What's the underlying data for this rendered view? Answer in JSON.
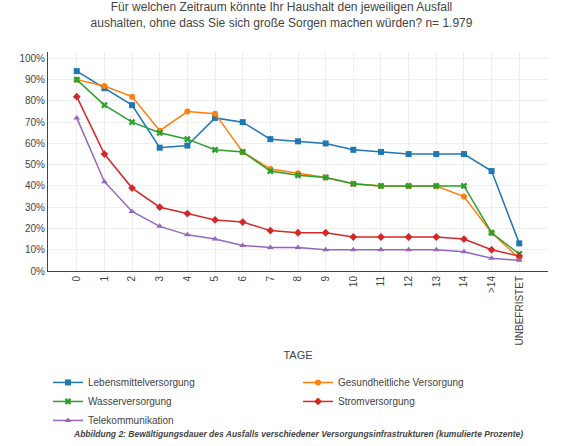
{
  "chart_data": {
    "type": "line",
    "title": "Für welchen Zeitraum könnte Ihr Haushalt den jeweiligen Ausfall\naushalten, ohne dass Sie sich große Sorgen machen würden? n= 1.979",
    "x_label": "TAGE",
    "annotations": [
      "Abbildung 2: Bewältigungsdauer des Ausfalls verschiedener Versorgungsinfrastrukturen (kumulierte Prozente)"
    ],
    "categories": [
      "0",
      "1",
      "2",
      "3",
      "4",
      "5",
      "6",
      "7",
      "8",
      "9",
      "10",
      "11",
      "12",
      "13",
      "14",
      ">14",
      "UNBEFRISTET"
    ],
    "series": [
      {
        "name": "Lebensmittelversorgung",
        "marker": "square",
        "values": [
          94,
          86,
          78,
          58,
          59,
          72,
          70,
          62,
          61,
          60,
          57,
          56,
          55,
          55,
          55,
          47,
          13
        ]
      },
      {
        "name": "Gesundheitliche Versorgung",
        "marker": "circle",
        "values": [
          90,
          87,
          82,
          66,
          75,
          74,
          56,
          48,
          46,
          44,
          41,
          40,
          40,
          40,
          35,
          18,
          6
        ]
      },
      {
        "name": "Wasserversorgung",
        "marker": "x",
        "values": [
          90,
          78,
          70,
          65,
          62,
          57,
          56,
          47,
          45,
          44,
          41,
          40,
          40,
          40,
          40,
          18,
          8
        ]
      },
      {
        "name": "Stromversorgung",
        "marker": "diamond",
        "values": [
          82,
          55,
          39,
          30,
          27,
          24,
          23,
          19,
          18,
          18,
          16,
          16,
          16,
          16,
          15,
          10,
          7
        ]
      },
      {
        "name": "Telekommunikation",
        "marker": "triangle",
        "values": [
          72,
          42,
          28,
          21,
          17,
          15,
          12,
          11,
          11,
          10,
          10,
          10,
          10,
          10,
          9,
          6,
          5
        ]
      }
    ],
    "ylim": [
      0,
      103
    ],
    "yticks": [
      {
        "value": 0,
        "label": "0%"
      },
      {
        "value": 10,
        "label": "10%"
      },
      {
        "value": 20,
        "label": "20%"
      },
      {
        "value": 30,
        "label": "30%"
      },
      {
        "value": 40,
        "label": "40%"
      },
      {
        "value": 50,
        "label": "50%"
      },
      {
        "value": 60,
        "label": "60%"
      },
      {
        "value": 70,
        "label": "70%"
      },
      {
        "value": 80,
        "label": "80%"
      },
      {
        "value": 90,
        "label": "90%"
      },
      {
        "value": 100,
        "label": "100%"
      }
    ],
    "grid": true,
    "legend": "bottom"
  }
}
